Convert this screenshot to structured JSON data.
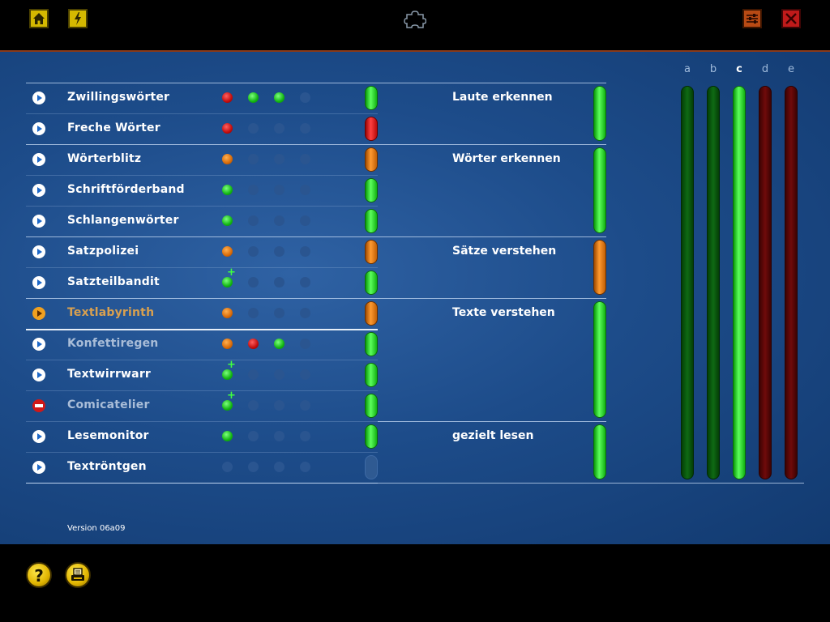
{
  "toolbar": {
    "home_icon": "home-icon",
    "energy_icon": "lightning-icon",
    "center_icon": "puzzle-icon",
    "settings_icon": "sliders-icon",
    "close_icon": "close-icon"
  },
  "exercises": [
    {
      "label": "Zwillingswörter",
      "state": "normal",
      "dots": [
        "red",
        "green",
        "green",
        "empty"
      ],
      "plus": false,
      "pill": "green"
    },
    {
      "label": "Freche Wörter",
      "state": "normal",
      "dots": [
        "red",
        "empty",
        "empty",
        "empty"
      ],
      "plus": false,
      "pill": "red"
    },
    {
      "label": "Wörterblitz",
      "state": "normal",
      "dots": [
        "orange",
        "empty",
        "empty",
        "empty"
      ],
      "plus": false,
      "pill": "orange"
    },
    {
      "label": "Schriftförderband",
      "state": "normal",
      "dots": [
        "green",
        "empty",
        "empty",
        "empty"
      ],
      "plus": false,
      "pill": "green"
    },
    {
      "label": "Schlangenwörter",
      "state": "normal",
      "dots": [
        "green",
        "empty",
        "empty",
        "empty"
      ],
      "plus": false,
      "pill": "green"
    },
    {
      "label": "Satzpolizei",
      "state": "normal",
      "dots": [
        "orange",
        "empty",
        "empty",
        "empty"
      ],
      "plus": false,
      "pill": "orange"
    },
    {
      "label": "Satzteilbandit",
      "state": "normal",
      "dots": [
        "green",
        "empty",
        "empty",
        "empty"
      ],
      "plus": true,
      "pill": "green"
    },
    {
      "label": "Textlabyrinth",
      "state": "active",
      "dots": [
        "orange",
        "empty",
        "empty",
        "empty"
      ],
      "plus": false,
      "pill": "orange"
    },
    {
      "label": "Konfettiregen",
      "state": "dim",
      "dots": [
        "orange",
        "red",
        "green",
        "empty"
      ],
      "plus": false,
      "pill": "green"
    },
    {
      "label": "Textwirrwarr",
      "state": "normal",
      "dots": [
        "green",
        "empty",
        "empty",
        "empty"
      ],
      "plus": true,
      "pill": "green"
    },
    {
      "label": "Comicatelier",
      "state": "blocked",
      "dots": [
        "green",
        "empty",
        "empty",
        "empty"
      ],
      "plus": true,
      "pill": "green"
    },
    {
      "label": "Lesemonitor",
      "state": "normal",
      "dots": [
        "green",
        "empty",
        "empty",
        "empty"
      ],
      "plus": false,
      "pill": "green"
    },
    {
      "label": "Textröntgen",
      "state": "normal",
      "dots": [
        "empty",
        "empty",
        "empty",
        "empty"
      ],
      "plus": false,
      "pill": "empty"
    }
  ],
  "categories": [
    {
      "label": "Laute erkennen",
      "color": "green"
    },
    {
      "label": "Wörter erkennen",
      "color": "green"
    },
    {
      "label": "Sätze verstehen",
      "color": "orange"
    },
    {
      "label": "Texte verstehen",
      "color": "green"
    },
    {
      "label": "gezielt lesen",
      "color": "green"
    }
  ],
  "levels": [
    {
      "label": "a",
      "color": "dark-green",
      "selected": false
    },
    {
      "label": "b",
      "color": "dark-green",
      "selected": false
    },
    {
      "label": "c",
      "color": "bright-green",
      "selected": true
    },
    {
      "label": "d",
      "color": "dark-red",
      "selected": false
    },
    {
      "label": "e",
      "color": "dark-red",
      "selected": false
    }
  ],
  "footer": {
    "version": "Version 06a09",
    "help_label": "?",
    "help_icon": "help-icon",
    "print_icon": "printer-icon"
  }
}
